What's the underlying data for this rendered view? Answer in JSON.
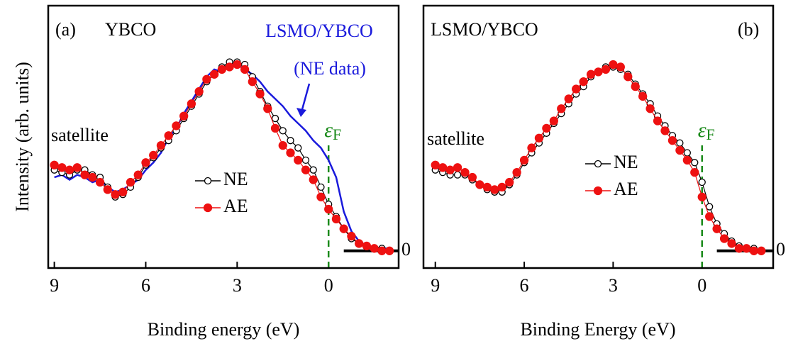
{
  "chart_data": [
    {
      "type": "line",
      "panel": "(a)",
      "title": "YBCO",
      "xlabel": "Binding energy (eV)",
      "ylabel": "Intensity (arb. units)",
      "xlim": [
        9.2,
        -2.3
      ],
      "xticks": [
        9,
        6,
        3,
        0
      ],
      "ylim": [
        -7,
        100
      ],
      "yticks": [
        0
      ],
      "annotations": [
        "(NE data)",
        "satellite"
      ],
      "fermi_label": {
        "symbol": "ε",
        "subscript": "F"
      },
      "fermi_level": 0,
      "x": [
        9,
        8.75,
        8.5,
        8.25,
        8,
        7.75,
        7.5,
        7.25,
        7,
        6.75,
        6.5,
        6.25,
        6,
        5.75,
        5.5,
        5.25,
        5,
        4.75,
        4.5,
        4.25,
        4,
        3.75,
        3.5,
        3.25,
        3,
        2.75,
        2.5,
        2.25,
        2,
        1.75,
        1.5,
        1.25,
        1,
        0.75,
        0.5,
        0.25,
        0,
        -0.25,
        -0.5,
        -0.75,
        -1,
        -1.25,
        -1.5,
        -1.75,
        -2
      ],
      "series": [
        {
          "name": "LSMO/YBCO",
          "color": "#1a1adc",
          "marker": "none",
          "values": [
            30,
            31,
            29,
            31,
            30,
            28,
            29,
            26,
            24,
            25,
            27,
            29,
            33,
            36,
            40,
            46,
            50,
            56,
            61,
            66,
            71,
            74,
            73,
            76,
            76,
            74,
            72,
            69,
            65,
            62,
            59,
            55,
            52,
            49,
            45,
            42,
            37,
            30,
            16,
            8,
            4,
            2,
            1,
            1,
            1
          ]
        },
        {
          "name": "NE",
          "color": "#000000",
          "marker": "open",
          "values": [
            33,
            32,
            31,
            33,
            33,
            31,
            30,
            26,
            22,
            23,
            26,
            30,
            35,
            38,
            42,
            45,
            49,
            54,
            59,
            64,
            69,
            72,
            75,
            77,
            77,
            76,
            71,
            65,
            59,
            54,
            49,
            45,
            42,
            37,
            33,
            26,
            19,
            14,
            9,
            5,
            3,
            2,
            1,
            1,
            0
          ]
        },
        {
          "name": "AE",
          "color": "#ee1111",
          "marker": "filled",
          "values": [
            35,
            34,
            33,
            34,
            31,
            30,
            28,
            25,
            23,
            24,
            28,
            31,
            36,
            39,
            43,
            47,
            51,
            55,
            60,
            65,
            70,
            72,
            74,
            75,
            76,
            74,
            69,
            64,
            58,
            50,
            43,
            40,
            37,
            33,
            29,
            22,
            17,
            13,
            9,
            6,
            3,
            2,
            1,
            0,
            0
          ]
        }
      ]
    },
    {
      "type": "line",
      "panel": "(b)",
      "title": "LSMO/YBCO",
      "xlabel": "Binding Energy (eV)",
      "xlim": [
        9.4,
        -2.4
      ],
      "xticks": [
        9,
        6,
        3,
        0
      ],
      "ylim": [
        -7,
        100
      ],
      "yticks": [
        0
      ],
      "annotations": [
        "satellite"
      ],
      "fermi_label": {
        "symbol": "ε",
        "subscript": "F"
      },
      "fermi_level": 0,
      "x": [
        9,
        8.75,
        8.5,
        8.25,
        8,
        7.75,
        7.5,
        7.25,
        7,
        6.75,
        6.5,
        6.25,
        6,
        5.75,
        5.5,
        5.25,
        5,
        4.75,
        4.5,
        4.25,
        4,
        3.75,
        3.5,
        3.25,
        3,
        2.75,
        2.5,
        2.25,
        2,
        1.75,
        1.5,
        1.25,
        1,
        0.75,
        0.5,
        0.25,
        0,
        -0.25,
        -0.5,
        -0.75,
        -1,
        -1.25,
        -1.5,
        -1.75,
        -2
      ],
      "series": [
        {
          "name": "NE",
          "color": "#000000",
          "marker": "open",
          "values": [
            33,
            32,
            31,
            31,
            31,
            29,
            27,
            25,
            24,
            24,
            27,
            31,
            36,
            40,
            44,
            48,
            52,
            56,
            60,
            64,
            67,
            71,
            73,
            75,
            75,
            74,
            72,
            68,
            64,
            60,
            55,
            51,
            47,
            44,
            40,
            36,
            28,
            18,
            11,
            7,
            4,
            2,
            1,
            1,
            0
          ]
        },
        {
          "name": "AE",
          "color": "#ee1111",
          "marker": "filled",
          "values": [
            35,
            34,
            33,
            34,
            32,
            30,
            27,
            26,
            25,
            26,
            28,
            32,
            37,
            42,
            46,
            50,
            53,
            58,
            62,
            66,
            69,
            72,
            73,
            74,
            76,
            75,
            71,
            67,
            63,
            58,
            53,
            49,
            45,
            41,
            37,
            32,
            22,
            14,
            9,
            5,
            3,
            1,
            1,
            0,
            0
          ]
        }
      ]
    }
  ]
}
